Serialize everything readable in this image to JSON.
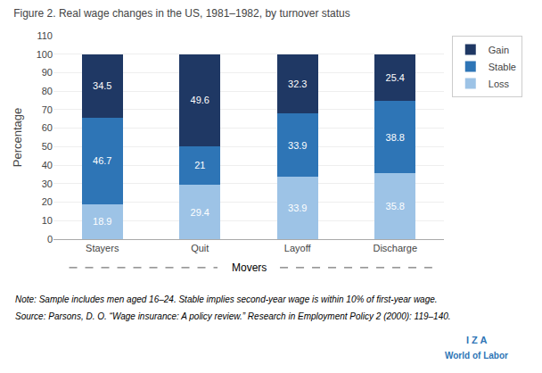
{
  "chart_data": {
    "type": "bar",
    "stacked": true,
    "title": "Figure 2. Real wage changes in the US, 1981–1982, by turnover status",
    "ylabel": "Percentage",
    "categories": [
      "Stayers",
      "Quit",
      "Layoff",
      "Discharge"
    ],
    "series": [
      {
        "name": "Loss",
        "color": "#9DC3E6",
        "values": [
          18.9,
          29.4,
          33.9,
          35.8
        ]
      },
      {
        "name": "Stable",
        "color": "#2E75B6",
        "values": [
          46.7,
          21.0,
          33.9,
          38.8
        ]
      },
      {
        "name": "Gain",
        "color": "#1F3864",
        "values": [
          34.5,
          49.6,
          32.3,
          25.4
        ]
      }
    ],
    "ylim": [
      0,
      110
    ],
    "yticks": [
      0,
      10,
      20,
      30,
      40,
      50,
      60,
      70,
      80,
      90,
      100,
      110
    ],
    "grid": true,
    "legend": "right",
    "data_labels": true,
    "annotations": [
      "Movers",
      "Note: Sample includes men aged 16–24. Stable implies second-year wage is within 10% of first-year wage.",
      "Source: Parsons, D. O. “Wage insurance: A policy review.” Research in Employment Policy 2 (2000): 119–140.",
      "I Z A",
      "World of Labor"
    ]
  }
}
